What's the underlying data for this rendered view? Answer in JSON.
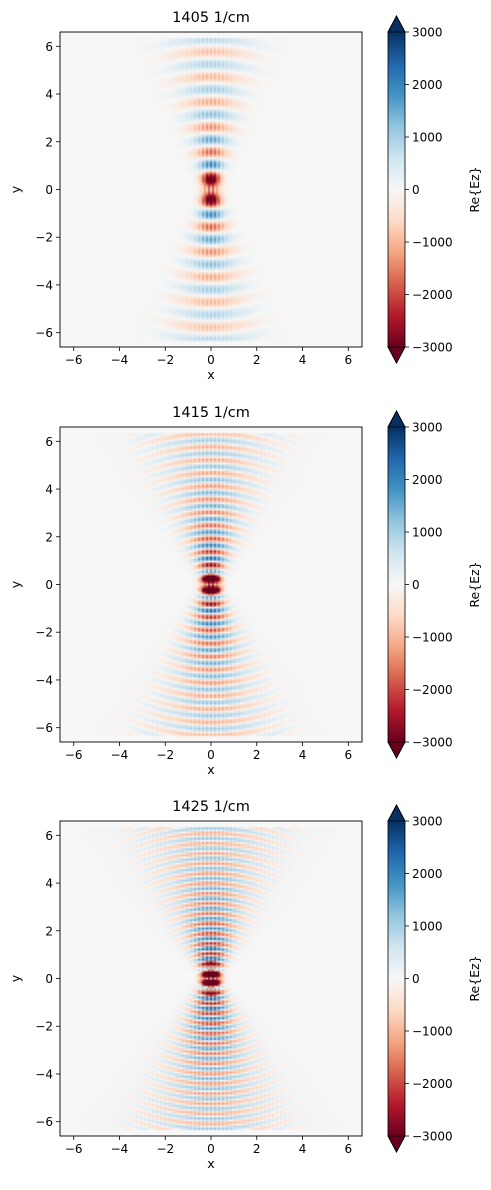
{
  "chart_data": [
    {
      "type": "heatmap",
      "title": "1405 1/cm",
      "xlabel": "x",
      "ylabel": "y",
      "colorbar_label": "Re{Ez}",
      "xlim": [
        -6.6,
        6.6
      ],
      "ylim": [
        -6.6,
        6.6
      ],
      "xticks": [
        -6,
        -4,
        -2,
        0,
        2,
        4,
        6
      ],
      "yticks": [
        -6,
        -4,
        -2,
        0,
        2,
        4,
        6
      ],
      "xticklabels": [
        "−6",
        "−4",
        "−2",
        "0",
        "2",
        "4",
        "6"
      ],
      "yticklabels": [
        "−6",
        "−4",
        "−2",
        "0",
        "2",
        "4",
        "6"
      ],
      "clim": [
        -3000,
        3000
      ],
      "cbar_ticks": [
        3000,
        2000,
        1000,
        0,
        -1000,
        -2000,
        -3000
      ],
      "cbar_ticklabels": [
        "3000",
        "2000",
        "1000",
        "0",
        "−1000",
        "−2000",
        "−3000"
      ],
      "colormap": "RdBu",
      "field": {
        "fringe_spacing": 1.05,
        "cone_half_width": 0.45,
        "cone_slope": 0.38,
        "extent": 6.3,
        "peak": 3300
      }
    },
    {
      "type": "heatmap",
      "title": "1415 1/cm",
      "xlabel": "x",
      "ylabel": "y",
      "colorbar_label": "Re{Ez}",
      "xlim": [
        -6.6,
        6.6
      ],
      "ylim": [
        -6.6,
        6.6
      ],
      "xticks": [
        -6,
        -4,
        -2,
        0,
        2,
        4,
        6
      ],
      "yticks": [
        -6,
        -4,
        -2,
        0,
        2,
        4,
        6
      ],
      "xticklabels": [
        "−6",
        "−4",
        "−2",
        "0",
        "2",
        "4",
        "6"
      ],
      "yticklabels": [
        "−6",
        "−4",
        "−2",
        "0",
        "2",
        "4",
        "6"
      ],
      "clim": [
        -3000,
        3000
      ],
      "cbar_ticks": [
        3000,
        2000,
        1000,
        0,
        -1000,
        -2000,
        -3000
      ],
      "cbar_ticklabels": [
        "3000",
        "2000",
        "1000",
        "0",
        "−1000",
        "−2000",
        "−3000"
      ],
      "colormap": "RdBu",
      "field": {
        "fringe_spacing": 0.55,
        "cone_half_width": 0.45,
        "cone_slope": 0.58,
        "extent": 6.3,
        "peak": 4200
      }
    },
    {
      "type": "heatmap",
      "title": "1425 1/cm",
      "xlabel": "x",
      "ylabel": "y",
      "colorbar_label": "Re{Ez}",
      "xlim": [
        -6.6,
        6.6
      ],
      "ylim": [
        -6.6,
        6.6
      ],
      "xticks": [
        -6,
        -4,
        -2,
        0,
        2,
        4,
        6
      ],
      "yticks": [
        -6,
        -4,
        -2,
        0,
        2,
        4,
        6
      ],
      "xticklabels": [
        "−6",
        "−4",
        "−2",
        "0",
        "2",
        "4",
        "6"
      ],
      "yticklabels": [
        "−6",
        "−4",
        "−2",
        "0",
        "2",
        "4",
        "6"
      ],
      "clim": [
        -3000,
        3000
      ],
      "cbar_ticks": [
        3000,
        2000,
        1000,
        0,
        -1000,
        -2000,
        -3000
      ],
      "cbar_ticklabels": [
        "3000",
        "2000",
        "1000",
        "0",
        "−1000",
        "−2000",
        "−3000"
      ],
      "colormap": "RdBu",
      "field": {
        "fringe_spacing": 0.42,
        "cone_half_width": 0.45,
        "cone_slope": 0.66,
        "extent": 6.3,
        "peak": 4600
      }
    }
  ]
}
